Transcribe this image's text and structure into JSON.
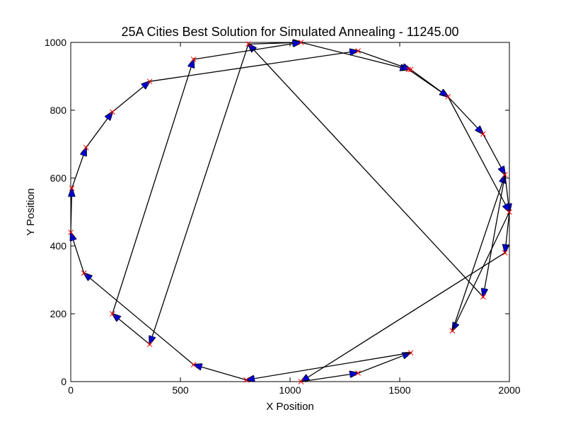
{
  "chart_data": {
    "type": "line",
    "title": "25A Cities Best Solution for Simulated Annealing - 11245.00",
    "xlabel": "X Position",
    "ylabel": "Y Position",
    "xlim": [
      0,
      2000
    ],
    "ylim": [
      0,
      1000
    ],
    "xticks": [
      0,
      500,
      1000,
      1500,
      2000
    ],
    "yticks": [
      0,
      200,
      400,
      600,
      800,
      1000
    ],
    "grid": false,
    "city_marker_color": "#ff0000",
    "arrow_head_color": "#0000cc",
    "path_color": "#000000",
    "tour": [
      {
        "x": 810,
        "y": 995
      },
      {
        "x": 1050,
        "y": 1000
      },
      {
        "x": 1540,
        "y": 920
      },
      {
        "x": 1720,
        "y": 840
      },
      {
        "x": 1880,
        "y": 730
      },
      {
        "x": 1980,
        "y": 610
      },
      {
        "x": 2000,
        "y": 500
      },
      {
        "x": 1980,
        "y": 380
      },
      {
        "x": 1050,
        "y": 0
      },
      {
        "x": 1310,
        "y": 25
      },
      {
        "x": 1550,
        "y": 85
      },
      {
        "x": 800,
        "y": 5
      },
      {
        "x": 560,
        "y": 50
      },
      {
        "x": 60,
        "y": 320
      },
      {
        "x": 0,
        "y": 440
      },
      {
        "x": 5,
        "y": 570
      },
      {
        "x": 70,
        "y": 690
      },
      {
        "x": 190,
        "y": 795
      },
      {
        "x": 360,
        "y": 885
      },
      {
        "x": 1310,
        "y": 975
      },
      {
        "x": 1550,
        "y": 920
      },
      {
        "x": 1720,
        "y": 840
      },
      {
        "x": 2000,
        "y": 500
      },
      {
        "x": 1740,
        "y": 150
      },
      {
        "x": 1980,
        "y": 610
      },
      {
        "x": 1880,
        "y": 250
      },
      {
        "x": 810,
        "y": 995
      },
      {
        "x": 360,
        "y": 110
      },
      {
        "x": 190,
        "y": 200
      },
      {
        "x": 560,
        "y": 950
      },
      {
        "x": 1050,
        "y": 1000
      }
    ]
  }
}
